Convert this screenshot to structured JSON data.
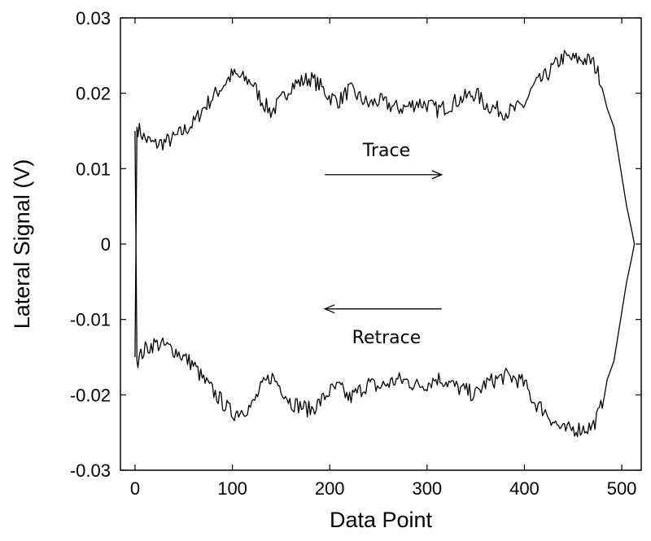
{
  "chart_data": {
    "type": "line",
    "xlabel": "Data Point",
    "ylabel": "Lateral Signal (V)",
    "xlim": [
      -15,
      520
    ],
    "ylim": [
      -0.03,
      0.03
    ],
    "xticks": [
      0,
      100,
      200,
      300,
      400,
      500
    ],
    "yticks": [
      0.03,
      0.02,
      0.01,
      0,
      -0.01,
      -0.02,
      -0.03
    ],
    "xtick_labels": [
      "0",
      "100",
      "200",
      "300",
      "400",
      "500"
    ],
    "ytick_labels": [
      "0.03",
      "0.02",
      "0.01",
      "0",
      "-0.01",
      "-0.02",
      "-0.03"
    ],
    "grid": false,
    "legend": "none",
    "series": [
      {
        "x": [
          0,
          2,
          5,
          10,
          20,
          30,
          40,
          50,
          60,
          70,
          80,
          90,
          100,
          110,
          120,
          130,
          140,
          150,
          160,
          170,
          180,
          190,
          200,
          210,
          220,
          230,
          240,
          250,
          260,
          270,
          280,
          290,
          300,
          310,
          320,
          330,
          340,
          350,
          360,
          370,
          380,
          390,
          400,
          410,
          420,
          430,
          440,
          450,
          460,
          470,
          478,
          485,
          492,
          500,
          505,
          510,
          513
        ],
        "values": [
          -0.015,
          0.0155,
          0.015,
          0.014,
          0.0132,
          0.0135,
          0.014,
          0.015,
          0.016,
          0.018,
          0.0195,
          0.021,
          0.0225,
          0.022,
          0.0215,
          0.019,
          0.0175,
          0.019,
          0.021,
          0.0215,
          0.022,
          0.021,
          0.0195,
          0.019,
          0.0205,
          0.0195,
          0.0185,
          0.019,
          0.0185,
          0.018,
          0.0182,
          0.0188,
          0.0185,
          0.0178,
          0.0182,
          0.019,
          0.0195,
          0.02,
          0.0185,
          0.018,
          0.0175,
          0.0178,
          0.0185,
          0.021,
          0.022,
          0.0235,
          0.0248,
          0.0245,
          0.0245,
          0.0242,
          0.022,
          0.018,
          0.0155,
          0.009,
          0.005,
          0.002,
          0.0
        ]
      },
      {
        "x": [
          0,
          2,
          5,
          10,
          20,
          30,
          40,
          50,
          60,
          70,
          80,
          90,
          100,
          110,
          120,
          130,
          140,
          150,
          160,
          170,
          180,
          190,
          200,
          210,
          220,
          230,
          240,
          250,
          260,
          270,
          280,
          290,
          300,
          310,
          320,
          330,
          340,
          350,
          360,
          370,
          380,
          390,
          400,
          410,
          420,
          430,
          440,
          450,
          460,
          470,
          478,
          485,
          492,
          500,
          505,
          510,
          513
        ],
        "values": [
          0.015,
          -0.0155,
          -0.015,
          -0.014,
          -0.0132,
          -0.0135,
          -0.014,
          -0.015,
          -0.016,
          -0.018,
          -0.0195,
          -0.021,
          -0.0225,
          -0.022,
          -0.0215,
          -0.019,
          -0.0175,
          -0.019,
          -0.021,
          -0.0215,
          -0.022,
          -0.021,
          -0.0195,
          -0.019,
          -0.0205,
          -0.0195,
          -0.0185,
          -0.019,
          -0.0185,
          -0.018,
          -0.0182,
          -0.0188,
          -0.0185,
          -0.0178,
          -0.0182,
          -0.019,
          -0.0195,
          -0.02,
          -0.0185,
          -0.018,
          -0.0175,
          -0.0178,
          -0.0185,
          -0.021,
          -0.022,
          -0.0235,
          -0.0248,
          -0.0245,
          -0.0245,
          -0.0242,
          -0.022,
          -0.018,
          -0.0155,
          -0.009,
          -0.005,
          -0.002,
          0.0
        ]
      }
    ],
    "annotations": [
      {
        "text": "Trace",
        "direction": "right",
        "x_from": 195,
        "x_to": 315,
        "y": 0.0092,
        "label_y": 0.0125
      },
      {
        "text": "Retrace",
        "direction": "left",
        "x_from": 315,
        "x_to": 195,
        "y": -0.0086,
        "label_y": -0.0123
      }
    ]
  }
}
